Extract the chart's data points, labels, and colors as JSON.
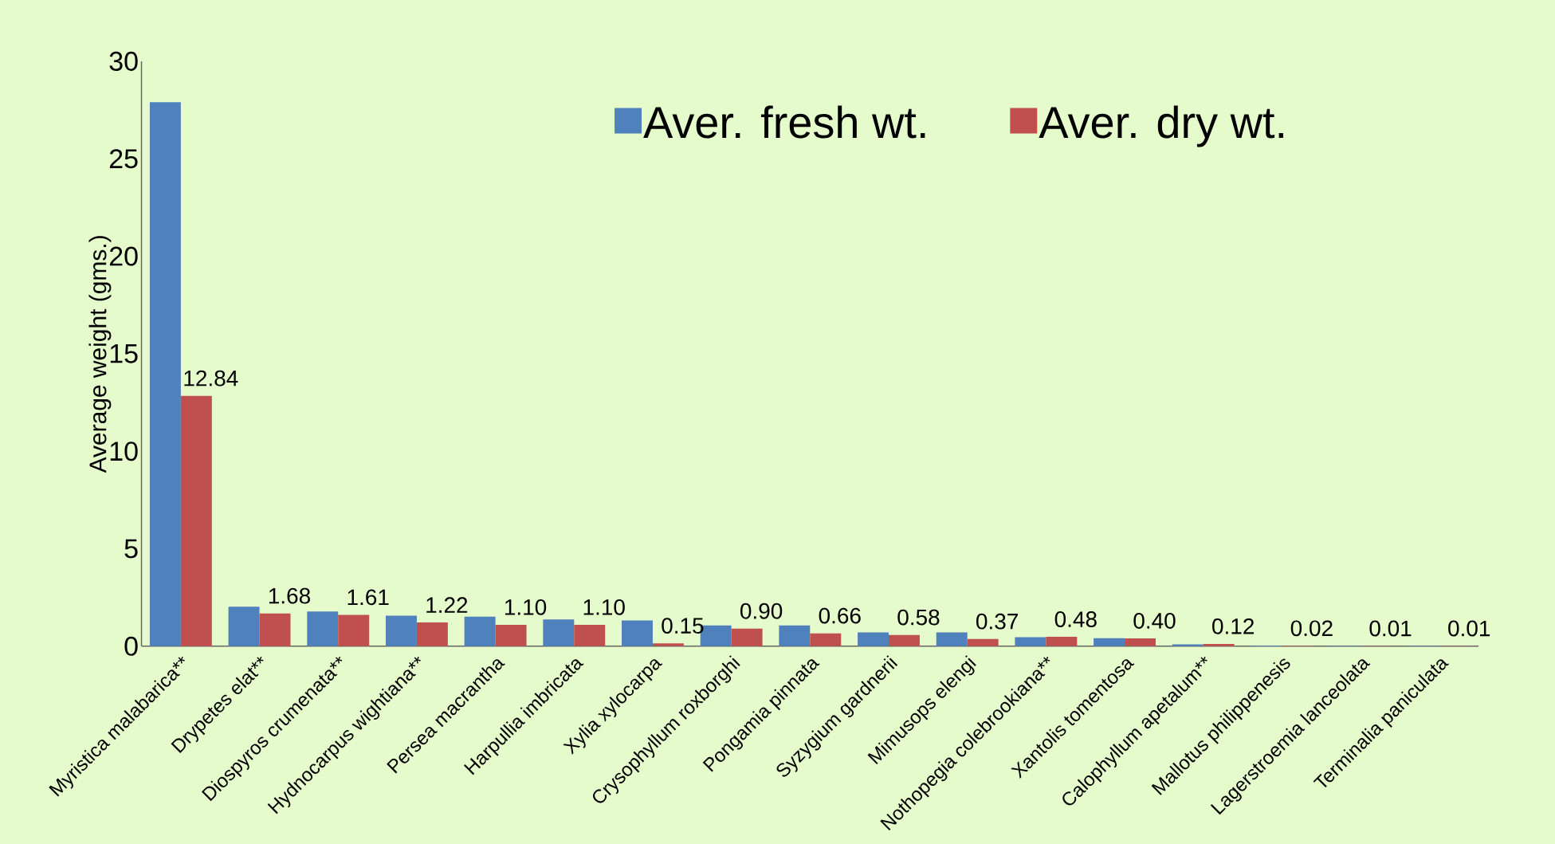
{
  "chart_data": {
    "type": "bar",
    "ylabel": "Average weight (gms.)",
    "categories": [
      "Myristica malabarica**",
      "Drypetes elat**",
      "Diospyros crumenata**",
      "Hydnocarpus wightiana**",
      "Persea macrantha",
      "Harpullia imbricata",
      "Xylia xylocarpa",
      "Crysophyllum roxborghi",
      "Pongamia pinnata",
      "Syzygium gardnerii",
      "Mimusops elengi",
      "Nothopegia colebrookiana**",
      "Xantolis tomentosa",
      "Calophyllum apetalum**",
      "Mallotus philippenesis",
      "Lagerstroemia lanceolata",
      "Terminalia paniculata"
    ],
    "series": [
      {
        "name": "Aver. fresh wt.",
        "color": "#4f81bd",
        "values": [
          27.9,
          2.03,
          1.78,
          1.57,
          1.52,
          1.37,
          1.32,
          1.07,
          1.07,
          0.71,
          0.71,
          0.46,
          0.41,
          0.1,
          0.03,
          0.02,
          0.02
        ]
      },
      {
        "name": "Aver. dry wt.",
        "color": "#c0504d",
        "values": [
          12.84,
          1.68,
          1.61,
          1.22,
          1.1,
          1.1,
          0.15,
          0.9,
          0.66,
          0.58,
          0.37,
          0.48,
          0.4,
          0.12,
          0.02,
          0.01,
          0.01
        ],
        "value_labels": [
          "12.84",
          "1.68",
          "1.61",
          "1.22",
          "1.10",
          "1.10",
          "0.15",
          "0.90",
          "0.66",
          "0.58",
          "0.37",
          "0.48",
          "0.40",
          "0.12",
          "0.02",
          "0.01",
          "0.01"
        ]
      }
    ],
    "ylim": [
      0,
      30
    ],
    "yticks": [
      0,
      5,
      10,
      15,
      20,
      25,
      30
    ],
    "grid": false,
    "legend": "top right"
  }
}
